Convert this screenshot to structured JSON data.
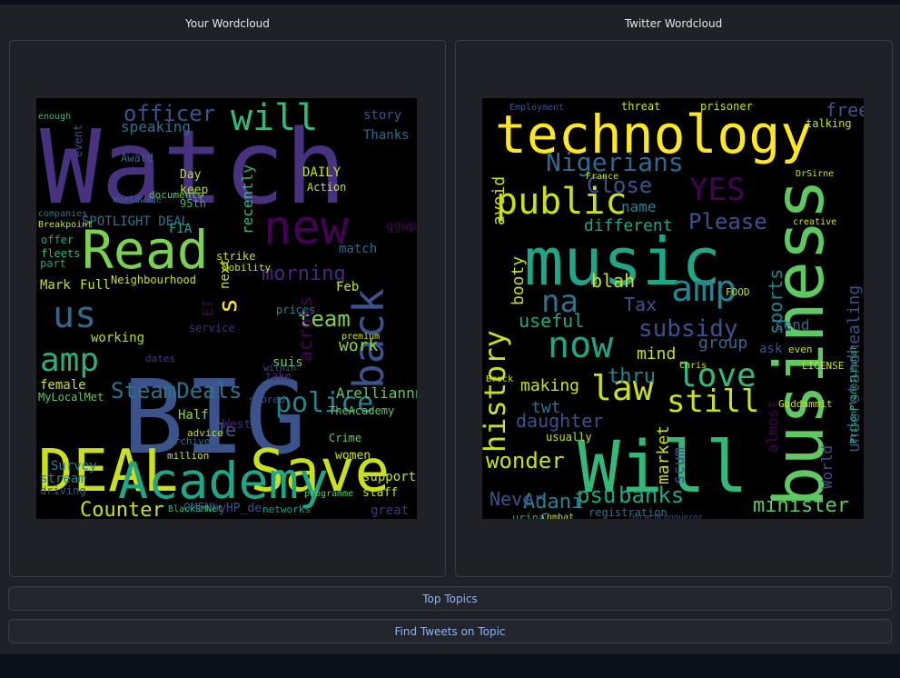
{
  "panels": {
    "left": {
      "label": "Your Wordcloud",
      "words": [
        {
          "t": "Watch",
          "c": "#46327e"
        },
        {
          "t": "BIG",
          "c": "#3b528b"
        },
        {
          "t": "DEAL",
          "c": "#c8e020"
        },
        {
          "t": "Save",
          "c": "#c8e020"
        },
        {
          "t": "Academy",
          "c": "#21a685"
        },
        {
          "t": "Read",
          "c": "#7ad151"
        },
        {
          "t": "new",
          "c": "#440154"
        },
        {
          "t": "back",
          "c": "#3b528b"
        },
        {
          "t": "will",
          "c": "#35b779"
        },
        {
          "t": "us",
          "c": "#31688e"
        },
        {
          "t": "amp",
          "c": "#2ab07f"
        },
        {
          "t": "police",
          "c": "#26828e"
        },
        {
          "t": "SteamDeals",
          "c": "#2c728e"
        },
        {
          "t": "officer",
          "c": "#3b528b"
        },
        {
          "t": "team",
          "c": "#7ad151"
        },
        {
          "t": "morning",
          "c": "#482878"
        },
        {
          "t": "Counter",
          "c": "#c8e020"
        },
        {
          "t": "s",
          "c": "#fde725"
        },
        {
          "t": "Je",
          "c": "#3b528b"
        },
        {
          "t": "work",
          "c": "#90d743"
        },
        {
          "t": "Arelliannn",
          "c": "#5ec962"
        },
        {
          "t": "SPOTLIGHT DEAL",
          "c": "#2c728e"
        },
        {
          "t": "FIA",
          "c": "#1f9e89"
        },
        {
          "t": "match",
          "c": "#31688e"
        },
        {
          "t": "speaking",
          "c": "#2c728e"
        },
        {
          "t": "story",
          "c": "#3b528b"
        },
        {
          "t": "Thanks",
          "c": "#31688e"
        },
        {
          "t": "DAILY",
          "c": "#c8e020"
        },
        {
          "t": "recently",
          "c": "#35b779"
        },
        {
          "t": "ggwp",
          "c": "#440154"
        },
        {
          "t": "Feb",
          "c": "#c8e020"
        },
        {
          "t": "support",
          "c": "#c8e020"
        },
        {
          "t": "women",
          "c": "#c8e020"
        },
        {
          "t": "staff",
          "c": "#c8e020"
        },
        {
          "t": "great",
          "c": "#46327e"
        },
        {
          "t": "stream",
          "c": "#26828e"
        },
        {
          "t": "Survey",
          "c": "#26828e"
        },
        {
          "t": "driving",
          "c": "#3b528b"
        },
        {
          "t": "Half",
          "c": "#90d743"
        },
        {
          "t": "working",
          "c": "#b5de2b"
        },
        {
          "t": "Mark",
          "c": "#c8e020"
        },
        {
          "t": "Full",
          "c": "#c8e020"
        },
        {
          "t": "part",
          "c": "#1f9e89"
        },
        {
          "t": "female",
          "c": "#c8e020"
        },
        {
          "t": "MyLocalMet",
          "c": "#5ec962"
        },
        {
          "t": "OMENbyHP_de",
          "c": "#3b528b"
        },
        {
          "t": "networks",
          "c": "#1f9e89"
        },
        {
          "t": "suis",
          "c": "#5ec962"
        },
        {
          "t": "Action",
          "c": "#c8e020"
        },
        {
          "t": "Day",
          "c": "#b5de2b"
        },
        {
          "t": "keep",
          "c": "#b5de2b"
        },
        {
          "t": "95th",
          "c": "#35b779"
        },
        {
          "t": "next",
          "c": "#c8e020"
        },
        {
          "t": "Neighbourhood",
          "c": "#c8e020"
        },
        {
          "t": "take",
          "c": "#482878"
        },
        {
          "t": "TheAcademy",
          "c": "#5ec962"
        },
        {
          "t": "Crime",
          "c": "#5ec962"
        },
        {
          "t": "Award",
          "c": "#31688e"
        },
        {
          "t": "West",
          "c": "#482878"
        },
        {
          "t": "offer",
          "c": "#21a685"
        },
        {
          "t": "fleets",
          "c": "#35b779"
        },
        {
          "t": "ET",
          "c": "#440154"
        },
        {
          "t": "strike",
          "c": "#c8e020"
        },
        {
          "t": "advice",
          "c": "#b5de2b"
        },
        {
          "t": "prices",
          "c": "#26828e"
        },
        {
          "t": "across",
          "c": "#440154"
        },
        {
          "t": "Mobility",
          "c": "#c8e020"
        },
        {
          "t": "premium",
          "c": "#c8e020"
        },
        {
          "t": "stored",
          "c": "#3b528b"
        },
        {
          "t": "million",
          "c": "#c8e020"
        },
        {
          "t": "archives",
          "c": "#31688e"
        },
        {
          "t": "within",
          "c": "#3b528b"
        },
        {
          "t": "programme",
          "c": "#5ec962"
        },
        {
          "t": "BlackSMNet",
          "c": "#35b779"
        },
        {
          "t": "companies",
          "c": "#2c728e"
        },
        {
          "t": "Breakpoint",
          "c": "#c8e020"
        },
        {
          "t": "enough",
          "c": "#35b779"
        },
        {
          "t": "dates",
          "c": "#46327e"
        },
        {
          "t": "service",
          "c": "#482878"
        },
        {
          "t": "documents",
          "c": "#5ec962"
        },
        {
          "t": "Worldwide",
          "c": "#31688e"
        },
        {
          "t": "event",
          "c": "#3b528b"
        }
      ]
    },
    "right": {
      "label": "Twitter Wordcloud",
      "words": [
        {
          "t": "technology",
          "c": "#fde725"
        },
        {
          "t": "business",
          "c": "#5ec962"
        },
        {
          "t": "music",
          "c": "#21a685"
        },
        {
          "t": "Will",
          "c": "#35b779"
        },
        {
          "t": "public",
          "c": "#c8e020"
        },
        {
          "t": "amp",
          "c": "#26828e"
        },
        {
          "t": "Nigerians",
          "c": "#31688e"
        },
        {
          "t": "history",
          "c": "#c8e020"
        },
        {
          "t": "now",
          "c": "#21a685"
        },
        {
          "t": "love",
          "c": "#35b779"
        },
        {
          "t": "still",
          "c": "#c8e020"
        },
        {
          "t": "law",
          "c": "#c8e020"
        },
        {
          "t": "na",
          "c": "#2c728e"
        },
        {
          "t": "subsidy",
          "c": "#3b528b"
        },
        {
          "t": "YES",
          "c": "#440154"
        },
        {
          "t": "Close",
          "c": "#3b528b"
        },
        {
          "t": "name",
          "c": "#26828e"
        },
        {
          "t": "Please",
          "c": "#3b528b"
        },
        {
          "t": "understandhealing",
          "c": "#3b528b"
        },
        {
          "t": "sports",
          "c": "#26828e"
        },
        {
          "t": "minister",
          "c": "#5ec962"
        },
        {
          "t": "banks",
          "c": "#21a685"
        },
        {
          "t": "psu",
          "c": "#21a685"
        },
        {
          "t": "Adani",
          "c": "#26828e"
        },
        {
          "t": "wonder",
          "c": "#c8e020"
        },
        {
          "t": "Never",
          "c": "#3b528b"
        },
        {
          "t": "daughter",
          "c": "#3b528b"
        },
        {
          "t": "making",
          "c": "#c8e020"
        },
        {
          "t": "twt",
          "c": "#2c728e"
        },
        {
          "t": "useful",
          "c": "#21a685"
        },
        {
          "t": "Tax",
          "c": "#3b528b"
        },
        {
          "t": "blah",
          "c": "#c8e020"
        },
        {
          "t": "booty",
          "c": "#c8e020"
        },
        {
          "t": "avoid",
          "c": "#c8e020"
        },
        {
          "t": "different",
          "c": "#21a685"
        },
        {
          "t": "mind",
          "c": "#c8e020"
        },
        {
          "t": "thru",
          "c": "#26828e"
        },
        {
          "t": "group",
          "c": "#31688e"
        },
        {
          "t": "send",
          "c": "#31688e"
        },
        {
          "t": "scum",
          "c": "#3b528b"
        },
        {
          "t": "market",
          "c": "#c8e020"
        },
        {
          "t": "almost",
          "c": "#440154"
        },
        {
          "t": "World",
          "c": "#3b528b"
        },
        {
          "t": "free",
          "c": "#3b528b"
        },
        {
          "t": "talking",
          "c": "#c8e020"
        },
        {
          "t": "threat",
          "c": "#c8e020"
        },
        {
          "t": "prisoner",
          "c": "#c8e020"
        },
        {
          "t": "LICENSE",
          "c": "#c8e020"
        },
        {
          "t": "Goddammit",
          "c": "#c8e020"
        },
        {
          "t": "FOOD",
          "c": "#c8e020"
        },
        {
          "t": "registration",
          "c": "#2c728e"
        },
        {
          "t": "urinal",
          "c": "#21a685"
        },
        {
          "t": "usually",
          "c": "#c8e020"
        },
        {
          "t": "ask",
          "c": "#3b528b"
        },
        {
          "t": "Employment",
          "c": "#3b528b"
        },
        {
          "t": "France",
          "c": "#c8e020"
        },
        {
          "t": "OscarDConqueror",
          "c": "#3b528b"
        },
        {
          "t": "even",
          "c": "#c8e020"
        },
        {
          "t": "Chris",
          "c": "#c8e020"
        },
        {
          "t": "PrisonPlanetLesnar",
          "c": "#35b779"
        },
        {
          "t": "creative",
          "c": "#c8e020"
        },
        {
          "t": "DrSirne",
          "c": "#c8e020"
        },
        {
          "t": "Combat",
          "c": "#c8e020"
        },
        {
          "t": "Brock",
          "c": "#c8e020"
        }
      ]
    }
  },
  "buttons": {
    "top_topics": "Top Topics",
    "find_tweets": "Find Tweets on Topic"
  }
}
